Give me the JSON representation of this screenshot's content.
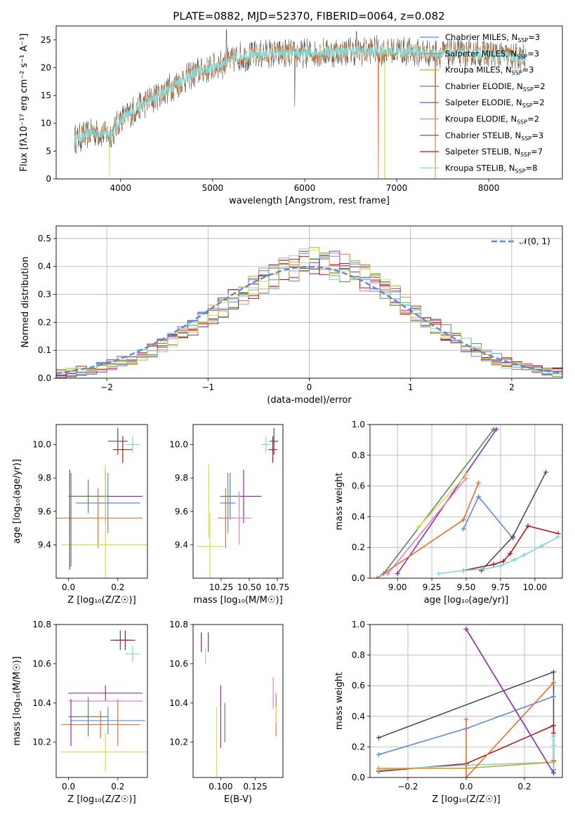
{
  "title": "PLATE=0882, MJD=52370, FIBERID=0064, z=0.082",
  "colors": {
    "chabrier_miles": "#5b8bd9",
    "salpeter_miles": "#e07030",
    "kroupa_miles": "#d9a030",
    "chabrier_elodie": "#5a8a5a",
    "salpeter_elodie": "#9030b0",
    "kroupa_elodie": "#e080c0",
    "chabrier_stelib": "#505050",
    "salpeter_stelib": "#b01818",
    "kroupa_stelib": "#7fd8d8",
    "yellow": "#d4e040",
    "gaussian": "#5b8bd9"
  },
  "chart_data": [
    {
      "id": "spectrum",
      "type": "line",
      "xlabel": "wavelength [Angstrom, rest frame]",
      "ylabel": "Flux [fλ10⁻¹⁷ erg cm⁻² s⁻¹ A⁻¹]",
      "xlim": [
        3300,
        8800
      ],
      "ylim": [
        0,
        27.5
      ],
      "xticks": [
        "4000",
        "5000",
        "6000",
        "7000",
        "8000"
      ],
      "yticks": [
        "0",
        "5",
        "10",
        "15",
        "20",
        "25"
      ],
      "continuum": [
        [
          3500,
          7
        ],
        [
          3700,
          8.5
        ],
        [
          3900,
          8
        ],
        [
          4000,
          10.5
        ],
        [
          4200,
          13
        ],
        [
          4500,
          16
        ],
        [
          4800,
          19
        ],
        [
          5000,
          20
        ],
        [
          5300,
          22
        ],
        [
          5600,
          22.5
        ],
        [
          6000,
          22.5
        ],
        [
          6500,
          23
        ],
        [
          7000,
          23
        ],
        [
          7500,
          22.5
        ],
        [
          8000,
          22.5
        ],
        [
          8400,
          21.5
        ]
      ],
      "legend": [
        {
          "label": "Chabrier MILES, N",
          "sub": "SSP",
          "tail": "=3",
          "color": "#5b8bd9"
        },
        {
          "label": "Salpeter MILES, N",
          "sub": "SSP",
          "tail": "=3",
          "color": "#e07030"
        },
        {
          "label": "Kroupa MILES, N",
          "sub": "SSP",
          "tail": "=3",
          "color": "#d9a030"
        },
        {
          "label": "Chabrier ELODIE, N",
          "sub": "SSP",
          "tail": "=2",
          "color": "#5a8a5a"
        },
        {
          "label": "Salpeter ELODIE, N",
          "sub": "SSP",
          "tail": "=2",
          "color": "#9030b0"
        },
        {
          "label": "Kroupa ELODIE, N",
          "sub": "SSP",
          "tail": "=2",
          "color": "#e080c0"
        },
        {
          "label": "Chabrier STELIB, N",
          "sub": "SSP",
          "tail": "=3",
          "color": "#505050"
        },
        {
          "label": "Salpeter STELIB, N",
          "sub": "SSP",
          "tail": "=7",
          "color": "#b01818"
        },
        {
          "label": "Kroupa STELIB, N",
          "sub": "SSP",
          "tail": "=8",
          "color": "#7fd8d8"
        }
      ]
    },
    {
      "id": "residuals",
      "type": "line",
      "xlabel": "(data-model)/error",
      "ylabel": "Normed distribution",
      "xlim": [
        -2.5,
        2.5
      ],
      "ylim": [
        0,
        0.545
      ],
      "xticks": [
        "−2",
        "−1",
        "0",
        "1",
        "2"
      ],
      "yticks": [
        "0.0",
        "0.1",
        "0.2",
        "0.3",
        "0.4",
        "0.5"
      ],
      "bin_width": 0.1,
      "bin_start": -2.5,
      "hist_ref": [
        0.017,
        0.02,
        0.026,
        0.032,
        0.04,
        0.048,
        0.058,
        0.07,
        0.084,
        0.1,
        0.118,
        0.137,
        0.158,
        0.18,
        0.203,
        0.227,
        0.252,
        0.277,
        0.302,
        0.326,
        0.348,
        0.368,
        0.385,
        0.398,
        0.41,
        0.415,
        0.412,
        0.405,
        0.395,
        0.38,
        0.36,
        0.34,
        0.318,
        0.293,
        0.266,
        0.24,
        0.213,
        0.187,
        0.163,
        0.14,
        0.118,
        0.1,
        0.082,
        0.067,
        0.054,
        0.044,
        0.036,
        0.03,
        0.025,
        0.022
      ],
      "legend_label": "𝒩(0, 1)",
      "gaussian": {
        "mu": 0,
        "sigma": 1
      }
    },
    {
      "id": "age_vs_Z",
      "type": "scatter",
      "xlabel": "Z [log₁₀(Z/Z☉)]",
      "ylabel": "age  [log₁₀(age/yr)]",
      "xlim": [
        -0.05,
        0.32
      ],
      "ylim": [
        9.2,
        10.12
      ],
      "xticks": [
        "0.0",
        "0.2"
      ],
      "yticks": [
        "9.4",
        "9.6",
        "9.8",
        "10.0"
      ],
      "points": [
        {
          "c": "chabrier_stelib",
          "x": 0.2,
          "xerr": 0.04,
          "y": 10.02,
          "yerr": 0.08
        },
        {
          "c": "salpeter_stelib",
          "x": 0.22,
          "xerr": 0.04,
          "y": 9.97,
          "yerr": 0.08
        },
        {
          "c": "kroupa_stelib",
          "x": 0.26,
          "xerr": 0.03,
          "y": 10.0,
          "yerr": 0.05
        },
        {
          "c": "chabrier_miles",
          "x": 0.16,
          "xerr": 0.13,
          "y": 9.65,
          "yerr": 0.18
        },
        {
          "c": "salpeter_elodie",
          "x": 0.15,
          "xerr": 0.15,
          "y": 9.69,
          "yerr": 0.16
        },
        {
          "c": "chabrier_elodie",
          "x": 0.08,
          "xerr": 0.08,
          "y": 9.69,
          "yerr": 0.1
        },
        {
          "c": "salpeter_miles",
          "x": 0.12,
          "xerr": 0.18,
          "y": 9.56,
          "yerr": 0.18
        },
        {
          "c": "yellow",
          "x": 0.15,
          "xerr": 0.18,
          "y": 9.4,
          "yerr": 0.48
        },
        {
          "c": "chabrier_elodie",
          "x": 0.01,
          "xerr": 0.0,
          "y": 9.55,
          "yerr": 0.28
        },
        {
          "c": "salpeter_elodie",
          "x": 0.005,
          "xerr": 0.0,
          "y": 9.55,
          "yerr": 0.3
        }
      ]
    },
    {
      "id": "age_vs_mass",
      "type": "scatter",
      "xlabel": "mass [log₁₀(M/M☉)]",
      "ylabel": "",
      "xlim": [
        10.0,
        10.8
      ],
      "ylim": [
        9.2,
        10.12
      ],
      "xticks": [
        "10.25",
        "10.50",
        "10.75"
      ],
      "yticks": [
        "9.4",
        "9.6",
        "9.8",
        "10.0"
      ],
      "points": [
        {
          "c": "chabrier_stelib",
          "x": 10.72,
          "xerr": 0.04,
          "y": 10.02,
          "yerr": 0.08
        },
        {
          "c": "salpeter_stelib",
          "x": 10.71,
          "xerr": 0.04,
          "y": 9.97,
          "yerr": 0.08
        },
        {
          "c": "kroupa_stelib",
          "x": 10.65,
          "xerr": 0.04,
          "y": 10.0,
          "yerr": 0.05
        },
        {
          "c": "chabrier_miles",
          "x": 10.31,
          "xerr": 0.07,
          "y": 9.65,
          "yerr": 0.18
        },
        {
          "c": "salpeter_elodie",
          "x": 10.45,
          "xerr": 0.16,
          "y": 9.69,
          "yerr": 0.16
        },
        {
          "c": "chabrier_elodie",
          "x": 10.33,
          "xerr": 0.09,
          "y": 9.69,
          "yerr": 0.14
        },
        {
          "c": "salpeter_miles",
          "x": 10.29,
          "xerr": 0.07,
          "y": 9.56,
          "yerr": 0.18
        },
        {
          "c": "kroupa_elodie",
          "x": 10.41,
          "xerr": 0.11,
          "y": 9.56,
          "yerr": 0.16
        },
        {
          "c": "yellow",
          "x": 10.15,
          "xerr": 0.12,
          "y": 9.39,
          "yerr": 0.2
        },
        {
          "c": "yellow",
          "x": 10.14,
          "xerr": 0.0,
          "y": 9.66,
          "yerr": 0.22
        }
      ]
    },
    {
      "id": "massweight_vs_age",
      "type": "line",
      "xlabel": "age  [log₁₀(age/yr)]",
      "ylabel": "mass weight",
      "xlim": [
        8.8,
        10.2
      ],
      "ylim": [
        0,
        1.0
      ],
      "xticks": [
        "9.00",
        "9.25",
        "9.50",
        "9.75",
        "10.00"
      ],
      "yticks": [
        "0.0",
        "0.2",
        "0.4",
        "0.6",
        "0.8",
        "1.0"
      ],
      "series": [
        {
          "c": "chabrier_elodie",
          "x": [
            8.9,
            9.7
          ],
          "y": [
            0.03,
            0.97
          ]
        },
        {
          "c": "salpeter_elodie",
          "x": [
            9.0,
            9.72
          ],
          "y": [
            0.03,
            0.97
          ]
        },
        {
          "c": "kroupa_elodie",
          "x": [
            8.93,
            9.5
          ],
          "y": [
            0.03,
            0.65
          ]
        },
        {
          "c": "yellow",
          "x": [
            9.15,
            9.5
          ],
          "y": [
            0.33,
            0.67
          ]
        },
        {
          "c": "salpeter_miles",
          "x": [
            8.85,
            9.48,
            9.59
          ],
          "y": [
            0.0,
            0.38,
            0.62
          ]
        },
        {
          "c": "chabrier_miles",
          "x": [
            9.48,
            9.59,
            9.84
          ],
          "y": [
            0.32,
            0.53,
            0.26
          ]
        },
        {
          "c": "chabrier_stelib",
          "x": [
            9.61,
            9.84,
            10.08
          ],
          "y": [
            0.05,
            0.27,
            0.69
          ]
        },
        {
          "c": "salpeter_stelib",
          "x": [
            9.48,
            9.7,
            9.77,
            9.82,
            9.95,
            10.17
          ],
          "y": [
            0.05,
            0.09,
            0.11,
            0.16,
            0.34,
            0.29
          ]
        },
        {
          "c": "kroupa_stelib",
          "x": [
            9.3,
            9.48,
            9.63,
            9.75,
            9.85,
            9.92,
            10.05,
            10.17
          ],
          "y": [
            0.03,
            0.05,
            0.06,
            0.08,
            0.12,
            0.15,
            0.21,
            0.27
          ]
        }
      ]
    },
    {
      "id": "mass_vs_Z",
      "type": "scatter",
      "xlabel": "Z [log₁₀(Z/Z☉)]",
      "ylabel": "mass [log₁₀(M/M☉)]",
      "xlim": [
        -0.05,
        0.32
      ],
      "ylim": [
        10.02,
        10.8
      ],
      "xticks": [
        "0.0",
        "0.2"
      ],
      "yticks": [
        "10.2",
        "10.4",
        "10.6",
        "10.8"
      ],
      "points": [
        {
          "c": "chabrier_stelib",
          "x": 0.21,
          "xerr": 0.04,
          "y": 10.72,
          "yerr": 0.05
        },
        {
          "c": "salpeter_stelib",
          "x": 0.23,
          "xerr": 0.04,
          "y": 10.72,
          "yerr": 0.05
        },
        {
          "c": "kroupa_stelib",
          "x": 0.26,
          "xerr": 0.03,
          "y": 10.65,
          "yerr": 0.04
        },
        {
          "c": "salpeter_elodie",
          "x": 0.15,
          "xerr": 0.15,
          "y": 10.45,
          "yerr": 0.04
        },
        {
          "c": "kroupa_elodie",
          "x": 0.15,
          "xerr": 0.15,
          "y": 10.41,
          "yerr": 0.0
        },
        {
          "c": "chabrier_elodie",
          "x": 0.08,
          "xerr": 0.08,
          "y": 10.33,
          "yerr": 0.1
        },
        {
          "c": "chabrier_miles",
          "x": 0.16,
          "xerr": 0.15,
          "y": 10.31,
          "yerr": 0.07
        },
        {
          "c": "salpeter_miles",
          "x": 0.13,
          "xerr": 0.16,
          "y": 10.29,
          "yerr": 0.07
        },
        {
          "c": "yellow",
          "x": 0.15,
          "xerr": 0.18,
          "y": 10.15,
          "yerr": 0.1
        },
        {
          "c": "salpeter_elodie",
          "x": 0.01,
          "xerr": 0.0,
          "y": 10.3,
          "yerr": 0.12
        },
        {
          "c": "salpeter_miles",
          "x": 0.2,
          "xerr": 0.0,
          "y": 10.3,
          "yerr": 0.12
        }
      ]
    },
    {
      "id": "mass_vs_ebv",
      "type": "scatter",
      "xlabel": "E(B-V)",
      "ylabel": "",
      "xlim": [
        0.08,
        0.145
      ],
      "ylim": [
        10.02,
        10.8
      ],
      "xticks": [
        "0.100",
        "0.125"
      ],
      "yticks": [
        "10.2",
        "10.4",
        "10.6",
        "10.8"
      ],
      "points": [
        {
          "c": "salpeter_stelib",
          "x": 0.086,
          "xerr": 0,
          "y": 10.71,
          "yerr": 0.05
        },
        {
          "c": "chabrier_stelib",
          "x": 0.091,
          "xerr": 0,
          "y": 10.71,
          "yerr": 0.05
        },
        {
          "c": "kroupa_stelib",
          "x": 0.089,
          "xerr": 0,
          "y": 10.64,
          "yerr": 0.04
        },
        {
          "c": "salpeter_elodie",
          "x": 0.1,
          "xerr": 0,
          "y": 10.33,
          "yerr": 0.16
        },
        {
          "c": "chabrier_elodie",
          "x": 0.103,
          "xerr": 0,
          "y": 10.3,
          "yerr": 0.1
        },
        {
          "c": "yellow",
          "x": 0.097,
          "xerr": 0,
          "y": 10.17,
          "yerr": 0.21
        },
        {
          "c": "kroupa_elodie",
          "x": 0.138,
          "xerr": 0,
          "y": 10.45,
          "yerr": 0.08
        },
        {
          "c": "salpeter_miles",
          "x": 0.14,
          "xerr": 0,
          "y": 10.34,
          "yerr": 0.11
        },
        {
          "c": "yellow",
          "x": 0.14,
          "xerr": 0,
          "y": 10.34,
          "yerr": 0.04
        }
      ]
    },
    {
      "id": "massweight_vs_Z",
      "type": "line",
      "xlabel": "Z [log₁₀(Z/Z☉)]",
      "ylabel": "mass weight",
      "xlim": [
        -0.33,
        0.33
      ],
      "ylim": [
        0,
        1.0
      ],
      "xticks": [
        "−0.2",
        "0.0",
        "0.2"
      ],
      "yticks": [
        "0.0",
        "0.2",
        "0.4",
        "0.6",
        "0.8",
        "1.0"
      ],
      "series": [
        {
          "c": "chabrier_stelib",
          "x": [
            -0.3,
            0.3,
            0.3,
            0.3
          ],
          "y": [
            0.26,
            0.69,
            0.27,
            0.05
          ]
        },
        {
          "c": "chabrier_miles",
          "x": [
            -0.3,
            0.0,
            0.3
          ],
          "y": [
            0.15,
            0.32,
            0.53
          ]
        },
        {
          "c": "salpeter_stelib",
          "x": [
            -0.3,
            0.0,
            0.3,
            0.3,
            0.3
          ],
          "y": [
            0.04,
            0.09,
            0.34,
            0.29,
            0.11
          ]
        },
        {
          "c": "kroupa_stelib",
          "x": [
            -0.3,
            0.0,
            0.3,
            0.3,
            0.3,
            0.3
          ],
          "y": [
            0.05,
            0.08,
            0.1,
            0.27,
            0.21,
            0.03
          ]
        },
        {
          "c": "kroupa_miles",
          "x": [
            -0.3,
            0.0,
            0.3
          ],
          "y": [
            0.06,
            0.06,
            0.1
          ]
        },
        {
          "c": "salpeter_miles",
          "x": [
            0.0,
            0.0,
            0.3,
            0.3
          ],
          "y": [
            0.38,
            0.0,
            0.62,
            0.62
          ]
        },
        {
          "c": "chabrier_elodie",
          "x": [
            0.0,
            0.3
          ],
          "y": [
            0.97,
            0.03
          ]
        },
        {
          "c": "salpeter_elodie",
          "x": [
            0.0,
            0.3
          ],
          "y": [
            0.97,
            0.03
          ]
        }
      ]
    }
  ]
}
